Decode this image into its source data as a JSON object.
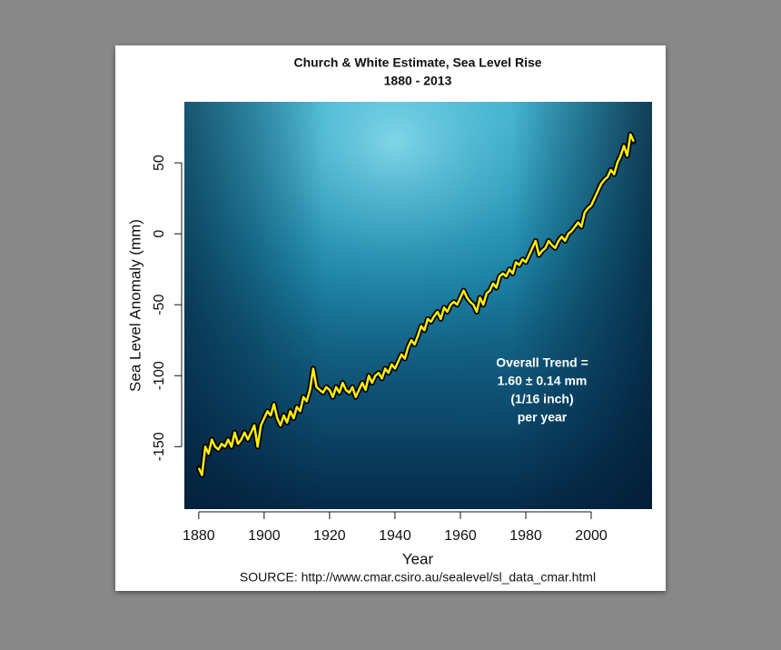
{
  "chart_data": {
    "type": "line",
    "title": "Church & White Estimate, Sea Level Rise",
    "subtitle": "1880 - 2013",
    "x_label": "Year",
    "y_label": "Sea Level Anomaly (mm)",
    "annotation": [
      "Overall Trend =",
      "1.60 ± 0.14 mm",
      "(1/16 inch)",
      "per year"
    ],
    "source": "SOURCE: http://www.cmar.csiro.au/sealevel/sl_data_cmar.html",
    "xlim": [
      1875.6,
      2018.6
    ],
    "ylim": [
      -194,
      93
    ],
    "xticks": [
      1880,
      1900,
      1920,
      1940,
      1960,
      1980,
      2000
    ],
    "yticks": [
      -150,
      -100,
      -50,
      0,
      50
    ],
    "x": [
      1880,
      1881,
      1882,
      1883,
      1884,
      1885,
      1886,
      1887,
      1888,
      1889,
      1890,
      1891,
      1892,
      1893,
      1894,
      1895,
      1896,
      1897,
      1898,
      1899,
      1900,
      1901,
      1902,
      1903,
      1904,
      1905,
      1906,
      1907,
      1908,
      1909,
      1910,
      1911,
      1912,
      1913,
      1914,
      1915,
      1916,
      1917,
      1918,
      1919,
      1920,
      1921,
      1922,
      1923,
      1924,
      1925,
      1926,
      1927,
      1928,
      1929,
      1930,
      1931,
      1932,
      1933,
      1934,
      1935,
      1936,
      1937,
      1938,
      1939,
      1940,
      1941,
      1942,
      1943,
      1944,
      1945,
      1946,
      1947,
      1948,
      1949,
      1950,
      1951,
      1952,
      1953,
      1954,
      1955,
      1956,
      1957,
      1958,
      1959,
      1960,
      1961,
      1962,
      1963,
      1964,
      1965,
      1966,
      1967,
      1968,
      1969,
      1970,
      1971,
      1972,
      1973,
      1974,
      1975,
      1976,
      1977,
      1978,
      1979,
      1980,
      1981,
      1982,
      1983,
      1984,
      1985,
      1986,
      1987,
      1988,
      1989,
      1990,
      1991,
      1992,
      1993,
      1994,
      1995,
      1996,
      1997,
      1998,
      1999,
      2000,
      2001,
      2002,
      2003,
      2004,
      2005,
      2006,
      2007,
      2008,
      2009,
      2010,
      2011,
      2012,
      2013
    ],
    "series": [
      {
        "name": "Sea level",
        "color": "#ffee00",
        "values": [
          -165,
          -170,
          -150,
          -155,
          -145,
          -150,
          -152,
          -148,
          -150,
          -145,
          -150,
          -140,
          -148,
          -145,
          -140,
          -145,
          -140,
          -135,
          -150,
          -135,
          -130,
          -125,
          -128,
          -120,
          -130,
          -135,
          -128,
          -133,
          -125,
          -130,
          -122,
          -125,
          -115,
          -118,
          -110,
          -95,
          -108,
          -110,
          -112,
          -108,
          -110,
          -115,
          -108,
          -112,
          -105,
          -110,
          -112,
          -108,
          -115,
          -110,
          -105,
          -110,
          -100,
          -105,
          -100,
          -98,
          -102,
          -95,
          -98,
          -92,
          -95,
          -90,
          -85,
          -88,
          -80,
          -75,
          -78,
          -72,
          -65,
          -68,
          -60,
          -62,
          -58,
          -55,
          -60,
          -52,
          -55,
          -50,
          -48,
          -50,
          -45,
          -40,
          -45,
          -48,
          -50,
          -55,
          -45,
          -50,
          -42,
          -40,
          -35,
          -38,
          -30,
          -28,
          -30,
          -25,
          -28,
          -20,
          -22,
          -18,
          -20,
          -15,
          -10,
          -5,
          -15,
          -12,
          -10,
          -5,
          -8,
          -10,
          -5,
          -2,
          -5,
          0,
          2,
          5,
          8,
          5,
          15,
          18,
          20,
          25,
          30,
          35,
          38,
          40,
          45,
          42,
          50,
          55,
          62,
          55,
          70,
          65
        ]
      }
    ]
  }
}
